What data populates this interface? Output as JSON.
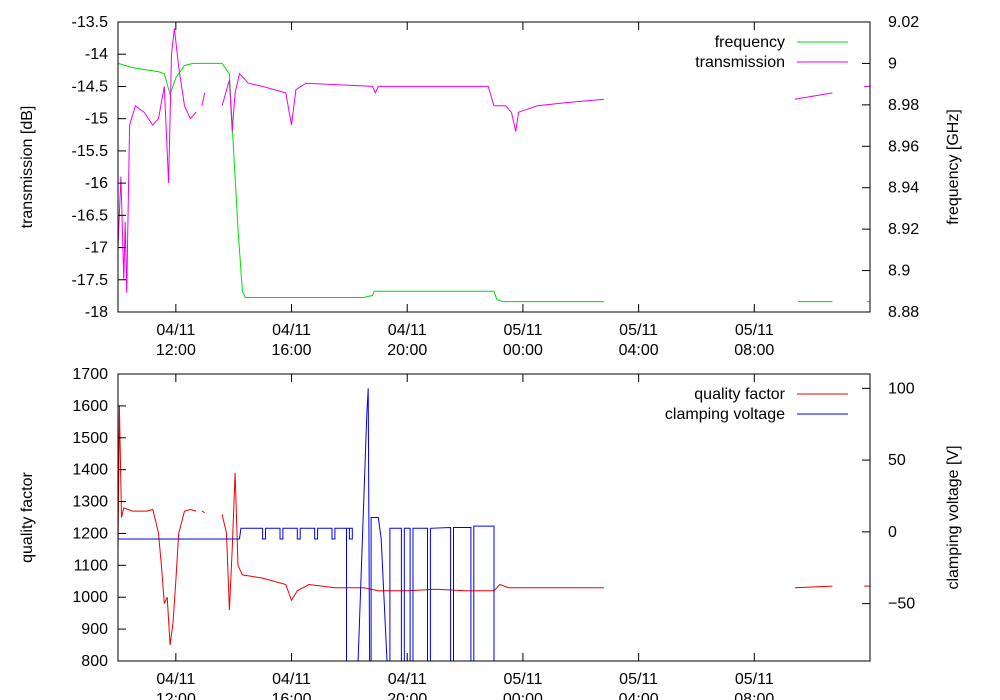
{
  "chart_data": [
    {
      "type": "line",
      "ylabel_left": "transmission [dB]",
      "ylabel_right": "frequency [GHz]",
      "legend_position": "top-right",
      "x_ticks": [
        {
          "t": 2,
          "date": "04/11",
          "time": "12:00"
        },
        {
          "t": 6,
          "date": "04/11",
          "time": "16:00"
        },
        {
          "t": 10,
          "date": "04/11",
          "time": "20:00"
        },
        {
          "t": 14,
          "date": "05/11",
          "time": "00:00"
        },
        {
          "t": 18,
          "date": "05/11",
          "time": "04:00"
        },
        {
          "t": 22,
          "date": "05/11",
          "time": "08:00"
        }
      ],
      "xlim": [
        0,
        26
      ],
      "ylim_left": [
        -18,
        -13.5
      ],
      "ylim_right": [
        8.88,
        9.02
      ],
      "yticks_left": [
        "-13.5",
        "-14",
        "-14.5",
        "-15",
        "-15.5",
        "-16",
        "-16.5",
        "-17",
        "-17.5",
        "-18"
      ],
      "yticks_right": [
        "9.02",
        "9",
        "8.98",
        "8.96",
        "8.94",
        "8.92",
        "8.9",
        "8.88"
      ],
      "series": [
        {
          "name": "frequency",
          "axis": "right",
          "color": "#00dd00",
          "segments": [
            [
              [
                0,
                9.0
              ],
              [
                0.5,
                8.998
              ],
              [
                1.4,
                8.996
              ],
              [
                1.6,
                8.995
              ],
              [
                1.8,
                8.985
              ],
              [
                2.0,
                8.993
              ],
              [
                2.3,
                8.999
              ],
              [
                2.6,
                9.0
              ],
              [
                3.6,
                9.0
              ],
              [
                3.85,
                8.995
              ],
              [
                3.95,
                8.97
              ],
              [
                4.15,
                8.92
              ],
              [
                4.3,
                8.89
              ],
              [
                4.4,
                8.887
              ],
              [
                7.0,
                8.887
              ],
              [
                8.5,
                8.887
              ],
              [
                8.8,
                8.888
              ],
              [
                8.85,
                8.89
              ],
              [
                12.5,
                8.89
              ],
              [
                13.0,
                8.89
              ],
              [
                13.1,
                8.886
              ],
              [
                13.3,
                8.885
              ],
              [
                16.8,
                8.885
              ]
            ],
            [
              [
                23.5,
                8.885
              ],
              [
                24.7,
                8.885
              ]
            ],
            [
              [
                25.9,
                8.885
              ],
              [
                26,
                8.885
              ]
            ]
          ]
        },
        {
          "name": "transmission",
          "axis": "left",
          "color": "#ee00ee",
          "segments": [
            [
              [
                0,
                -17.0
              ],
              [
                0.1,
                -15.9
              ],
              [
                0.2,
                -17.5
              ],
              [
                0.25,
                -16.6
              ],
              [
                0.3,
                -17.7
              ],
              [
                0.4,
                -15.1
              ],
              [
                0.6,
                -14.8
              ],
              [
                0.9,
                -14.9
              ],
              [
                1.2,
                -15.1
              ],
              [
                1.4,
                -15.0
              ],
              [
                1.6,
                -14.5
              ],
              [
                1.75,
                -16.0
              ],
              [
                1.85,
                -14.0
              ],
              [
                1.95,
                -13.6
              ],
              [
                2.1,
                -14.2
              ],
              [
                2.3,
                -14.8
              ],
              [
                2.5,
                -15.0
              ],
              [
                2.7,
                -14.9
              ]
            ],
            [
              [
                2.9,
                -14.8
              ],
              [
                3.0,
                -14.6
              ]
            ],
            [
              [
                3.6,
                -14.8
              ],
              [
                3.85,
                -14.4
              ],
              [
                3.95,
                -15.2
              ],
              [
                4.05,
                -14.6
              ],
              [
                4.2,
                -14.3
              ],
              [
                4.5,
                -14.45
              ],
              [
                5.0,
                -14.5
              ],
              [
                5.8,
                -14.6
              ],
              [
                6.0,
                -15.1
              ],
              [
                6.15,
                -14.55
              ],
              [
                6.5,
                -14.45
              ],
              [
                8.8,
                -14.5
              ],
              [
                8.9,
                -14.6
              ],
              [
                9.0,
                -14.5
              ],
              [
                12.8,
                -14.5
              ],
              [
                13.0,
                -14.8
              ],
              [
                13.4,
                -14.8
              ],
              [
                13.6,
                -14.9
              ],
              [
                13.75,
                -15.2
              ],
              [
                13.85,
                -14.9
              ],
              [
                14.5,
                -14.8
              ],
              [
                15.5,
                -14.75
              ],
              [
                16.8,
                -14.7
              ]
            ],
            [
              [
                23.4,
                -14.7
              ],
              [
                24.7,
                -14.6
              ]
            ],
            [
              [
                25.8,
                -14.5
              ],
              [
                26,
                -14.5
              ]
            ]
          ]
        }
      ]
    },
    {
      "type": "line",
      "ylabel_left": "quality factor",
      "ylabel_right": "clamping voltage [V]",
      "legend_position": "top-right",
      "x_ticks": [
        {
          "t": 2,
          "date": "04/11",
          "time": "12:00"
        },
        {
          "t": 6,
          "date": "04/11",
          "time": "16:00"
        },
        {
          "t": 10,
          "date": "04/11",
          "time": "20:00"
        },
        {
          "t": 14,
          "date": "05/11",
          "time": "00:00"
        },
        {
          "t": 18,
          "date": "05/11",
          "time": "04:00"
        },
        {
          "t": 22,
          "date": "05/11",
          "time": "08:00"
        }
      ],
      "xlim": [
        0,
        26
      ],
      "ylim_left": [
        800,
        1700
      ],
      "ylim_right": [
        -90,
        110
      ],
      "yticks_left": [
        "1700",
        "1600",
        "1500",
        "1400",
        "1300",
        "1200",
        "1100",
        "1000",
        "900",
        "800"
      ],
      "yticks_right": [
        "100",
        "50",
        "0",
        "−50"
      ],
      "series": [
        {
          "name": "quality factor",
          "axis": "left",
          "color": "#ee0000",
          "segments": [
            [
              [
                0,
                1150
              ],
              [
                0.05,
                1600
              ],
              [
                0.12,
                1250
              ],
              [
                0.2,
                1280
              ],
              [
                0.5,
                1270
              ],
              [
                1.0,
                1270
              ],
              [
                1.2,
                1275
              ],
              [
                1.3,
                1240
              ],
              [
                1.4,
                1200
              ],
              [
                1.5,
                1100
              ],
              [
                1.6,
                980
              ],
              [
                1.7,
                1000
              ],
              [
                1.8,
                850
              ],
              [
                1.9,
                920
              ],
              [
                2.0,
                1050
              ],
              [
                2.1,
                1200
              ],
              [
                2.3,
                1270
              ],
              [
                2.5,
                1275
              ],
              [
                2.7,
                1270
              ]
            ],
            [
              [
                2.9,
                1270
              ],
              [
                3.0,
                1265
              ]
            ],
            [
              [
                3.6,
                1260
              ],
              [
                3.75,
                1200
              ],
              [
                3.85,
                960
              ],
              [
                3.95,
                1150
              ],
              [
                4.05,
                1390
              ],
              [
                4.15,
                1100
              ],
              [
                4.3,
                1070
              ],
              [
                5.0,
                1060
              ],
              [
                5.8,
                1040
              ],
              [
                6.0,
                990
              ],
              [
                6.2,
                1020
              ],
              [
                6.6,
                1040
              ],
              [
                7.5,
                1030
              ],
              [
                8.5,
                1030
              ],
              [
                9.0,
                1020
              ],
              [
                10,
                1020
              ],
              [
                11,
                1025
              ],
              [
                12,
                1020
              ],
              [
                13,
                1020
              ],
              [
                13.2,
                1040
              ],
              [
                13.5,
                1030
              ],
              [
                14.5,
                1030
              ],
              [
                16.8,
                1030
              ]
            ],
            [
              [
                23.4,
                1030
              ],
              [
                24.7,
                1035
              ]
            ],
            [
              [
                25.8,
                1035
              ],
              [
                26,
                1035
              ]
            ]
          ]
        },
        {
          "name": "clamping voltage",
          "axis": "right",
          "color": "#0000ee",
          "segments": [
            [
              [
                0,
                -5
              ],
              [
                4.2,
                -5
              ],
              [
                4.25,
                2.5
              ],
              [
                5.0,
                2.5
              ],
              [
                5.0,
                -5
              ],
              [
                5.1,
                -5
              ],
              [
                5.1,
                2.5
              ],
              [
                5.6,
                2.5
              ],
              [
                5.6,
                -5
              ],
              [
                5.7,
                -5
              ],
              [
                5.7,
                2.5
              ],
              [
                6.2,
                2.5
              ],
              [
                6.2,
                -5
              ],
              [
                6.3,
                -5
              ],
              [
                6.3,
                2.5
              ],
              [
                6.8,
                2.5
              ],
              [
                6.8,
                -5
              ],
              [
                6.9,
                -5
              ],
              [
                6.9,
                2.5
              ],
              [
                7.4,
                2.5
              ],
              [
                7.4,
                -5
              ],
              [
                7.5,
                -5
              ],
              [
                7.5,
                2.5
              ],
              [
                8.0,
                2.5
              ],
              [
                8.0,
                -5
              ],
              [
                8.1,
                -5
              ],
              [
                8.1,
                2.5
              ],
              [
                7.9,
                2.5
              ],
              [
                7.9,
                2.5
              ],
              [
                7.9,
                2.5
              ]
            ],
            [
              [
                7.9,
                2.5
              ],
              [
                7.9,
                -90
              ]
            ],
            [
              [
                8.3,
                -90
              ],
              [
                8.6,
                80
              ],
              [
                8.65,
                100
              ],
              [
                8.7,
                -90
              ]
            ],
            [
              [
                8.75,
                -90
              ],
              [
                8.75,
                10
              ],
              [
                9.0,
                10
              ],
              [
                9.1,
                -5
              ],
              [
                9.3,
                -90
              ],
              [
                9.4,
                -90
              ],
              [
                9.4,
                2.5
              ],
              [
                9.8,
                2.5
              ],
              [
                9.8,
                -90
              ],
              [
                9.9,
                -90
              ],
              [
                9.9,
                2.5
              ],
              [
                10.1,
                2.5
              ],
              [
                10.1,
                -90
              ],
              [
                10.2,
                -90
              ],
              [
                10.2,
                2.5
              ],
              [
                10.7,
                2.5
              ],
              [
                10.7,
                -90
              ],
              [
                10.8,
                -90
              ],
              [
                10.8,
                2.5
              ],
              [
                11.5,
                3
              ],
              [
                11.5,
                -90
              ],
              [
                11.6,
                -90
              ],
              [
                11.6,
                3
              ],
              [
                12.2,
                3
              ],
              [
                12.2,
                -90
              ],
              [
                12.3,
                -90
              ],
              [
                12.3,
                4
              ],
              [
                13.0,
                4
              ],
              [
                13.0,
                -90
              ]
            ]
          ]
        }
      ]
    }
  ]
}
